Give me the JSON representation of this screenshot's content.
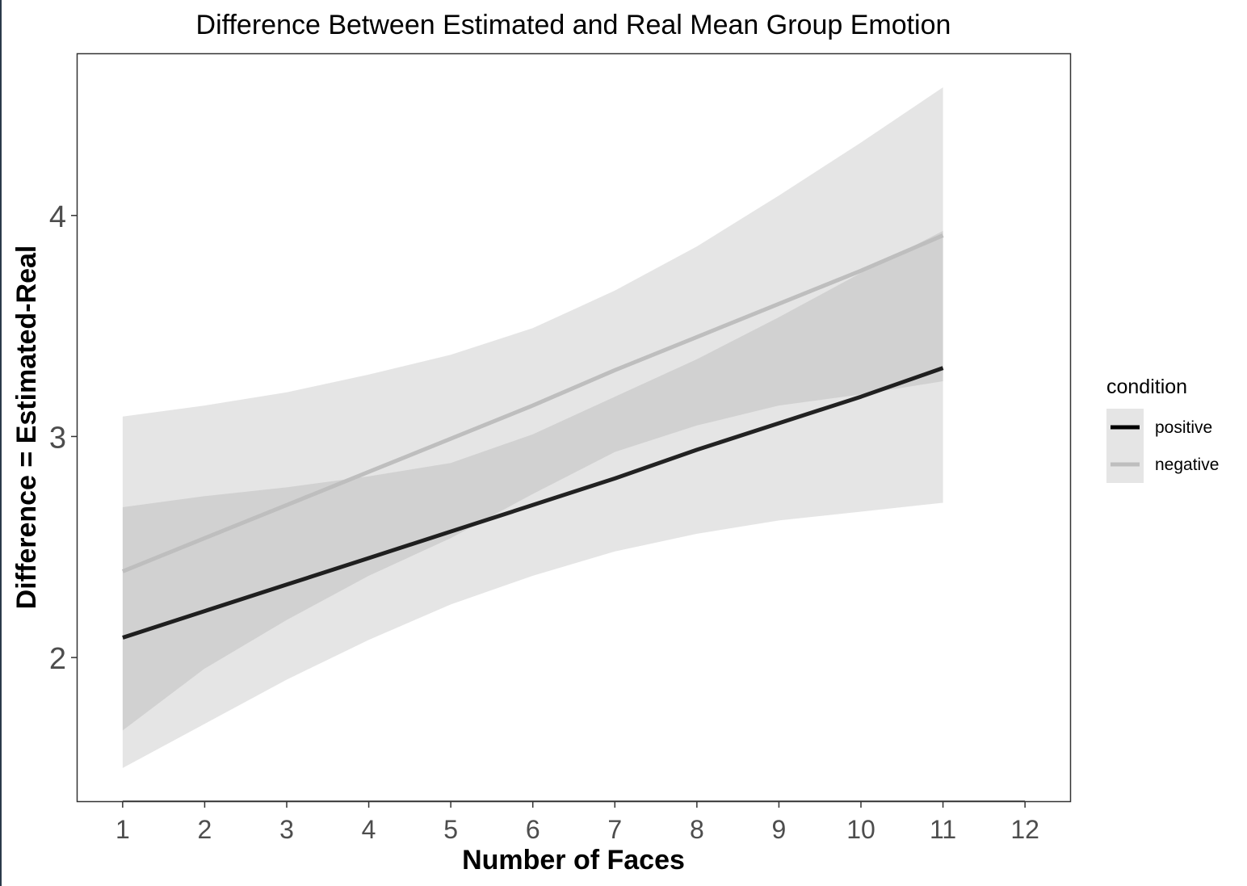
{
  "chart_data": {
    "type": "line",
    "title": "Difference Between Estimated and Real Mean Group Emotion",
    "xlabel": "Number of Faces",
    "ylabel": "Difference = Estimated-Real",
    "xlim": [
      0.45,
      12.55
    ],
    "ylim": [
      1.35,
      4.73
    ],
    "xticks": [
      1,
      2,
      3,
      4,
      5,
      6,
      7,
      8,
      9,
      10,
      11,
      12
    ],
    "yticks": [
      2,
      3,
      4
    ],
    "grid": false,
    "legend": {
      "title": "condition",
      "position": "right"
    },
    "series": [
      {
        "name": "positive",
        "color": "#000000",
        "x": [
          1,
          2,
          3,
          4,
          5,
          6,
          7,
          8,
          9,
          10,
          11
        ],
        "y": [
          2.09,
          2.21,
          2.33,
          2.45,
          2.57,
          2.69,
          2.81,
          2.94,
          3.06,
          3.18,
          3.31
        ],
        "ci_lower": [
          1.67,
          1.95,
          2.17,
          2.37,
          2.54,
          2.74,
          2.93,
          3.05,
          3.14,
          3.19,
          3.25
        ],
        "ci_upper": [
          2.68,
          2.73,
          2.77,
          2.82,
          2.88,
          3.01,
          3.18,
          3.35,
          3.54,
          3.74,
          3.93
        ]
      },
      {
        "name": "negative",
        "color": "#bebebe",
        "x": [
          1,
          2,
          3,
          4,
          5,
          6,
          7,
          8,
          9,
          10,
          11
        ],
        "y": [
          2.39,
          2.54,
          2.69,
          2.84,
          2.99,
          3.14,
          3.3,
          3.45,
          3.6,
          3.75,
          3.91
        ],
        "ci_lower": [
          1.5,
          1.7,
          1.9,
          2.08,
          2.24,
          2.37,
          2.48,
          2.56,
          2.62,
          2.66,
          2.7
        ],
        "ci_upper": [
          3.09,
          3.14,
          3.2,
          3.28,
          3.37,
          3.49,
          3.66,
          3.86,
          4.09,
          4.33,
          4.58
        ]
      }
    ]
  }
}
